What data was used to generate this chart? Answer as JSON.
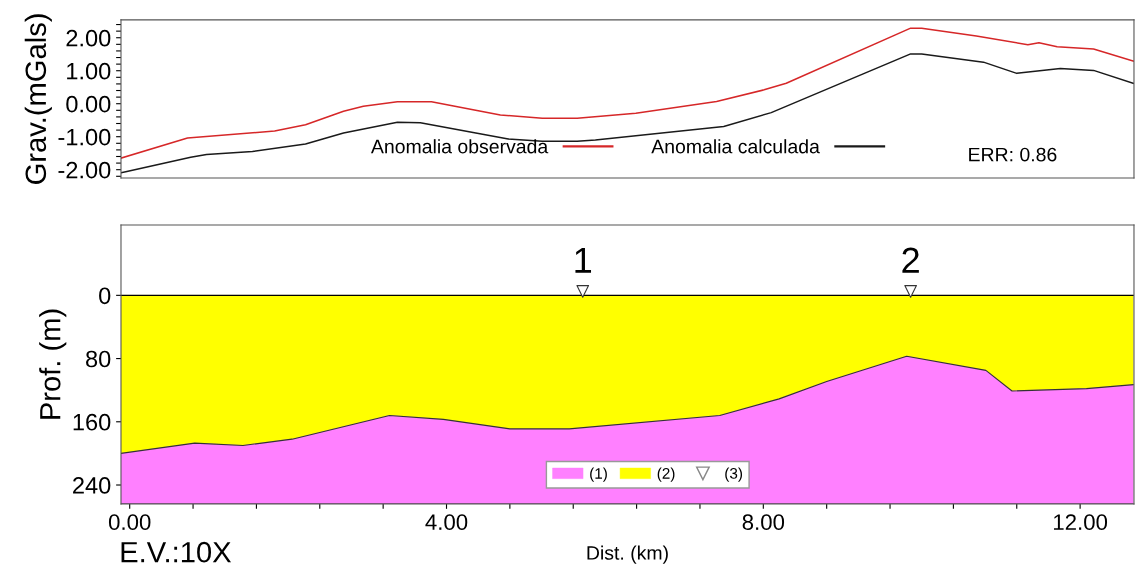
{
  "chart_data": [
    {
      "type": "line",
      "ylabel": "Grav.(mGals)",
      "xlim": [
        -0.11,
        12.68
      ],
      "ylim": [
        -2.25,
        2.54
      ],
      "tick_labels": "y",
      "grid": false,
      "legend": "bottom",
      "line_style": "solid",
      "marker": "none",
      "yticks": [
        {
          "value": -2.2,
          "label": null
        },
        {
          "value": -2,
          "label": "-2.00"
        },
        {
          "value": -1.8,
          "label": null
        },
        {
          "value": -1.6,
          "label": null
        },
        {
          "value": -1.4,
          "label": null
        },
        {
          "value": -1.2,
          "label": null
        },
        {
          "value": -1,
          "label": "-1.00"
        },
        {
          "value": -0.8,
          "label": null
        },
        {
          "value": -0.6,
          "label": null
        },
        {
          "value": -0.4,
          "label": null
        },
        {
          "value": -0.2,
          "label": null
        },
        {
          "value": 0,
          "label": "0.00"
        },
        {
          "value": 0.2,
          "label": null
        },
        {
          "value": 0.4,
          "label": null
        },
        {
          "value": 0.6,
          "label": null
        },
        {
          "value": 0.8,
          "label": null
        },
        {
          "value": 1,
          "label": "1.00"
        },
        {
          "value": 1.2,
          "label": null
        },
        {
          "value": 1.4,
          "label": null
        },
        {
          "value": 1.6,
          "label": null
        },
        {
          "value": 1.8,
          "label": null
        },
        {
          "value": 2,
          "label": "2.00"
        },
        {
          "value": 2.2,
          "label": null
        },
        {
          "value": 2.4,
          "label": null
        }
      ],
      "annotations": [
        "ERR: 0.86"
      ],
      "series": [
        {
          "name": "Anomalia observada",
          "color": "#d62728",
          "x": [
            -0.11,
            0.73,
            1.83,
            2.22,
            2.7,
            2.95,
            3.38,
            3.81,
            4.68,
            5.21,
            5.65,
            6.39,
            7.41,
            8.01,
            8.29,
            9.86,
            10.0,
            10.69,
            11.34,
            11.48,
            11.71,
            12.17,
            12.67
          ],
          "values": [
            -1.65,
            -1.04,
            -0.83,
            -0.64,
            -0.23,
            -0.08,
            0.06,
            0.06,
            -0.34,
            -0.44,
            -0.44,
            -0.29,
            0.07,
            0.42,
            0.62,
            2.29,
            2.29,
            2.05,
            1.79,
            1.85,
            1.73,
            1.66,
            1.29
          ]
        },
        {
          "name": "Anomalia calculada",
          "color": "#1a1a1a",
          "x": [
            -0.11,
            -0.05,
            0.77,
            0.97,
            1.55,
            2.22,
            2.7,
            3.38,
            3.67,
            4.78,
            5.21,
            5.65,
            5.88,
            7.5,
            8.1,
            9.86,
            10.0,
            10.78,
            11.2,
            11.75,
            12.17,
            12.67
          ],
          "values": [
            -2.09,
            -2.06,
            -1.62,
            -1.54,
            -1.45,
            -1.22,
            -0.89,
            -0.56,
            -0.58,
            -1.07,
            -1.14,
            -1.14,
            -1.1,
            -0.69,
            -0.27,
            1.51,
            1.51,
            1.26,
            0.92,
            1.07,
            1.01,
            0.62
          ]
        }
      ]
    },
    {
      "type": "area",
      "stacked": true,
      "xlabel": "Dist. (km)",
      "ylabel": "Prof. (m)",
      "xlim": [
        -0.11,
        12.68
      ],
      "ylim": [
        264,
        -89
      ],
      "grid": false,
      "legend": "bottom",
      "xticks": [
        {
          "value": 0,
          "label": "0.00"
        },
        {
          "value": 0.8,
          "label": null
        },
        {
          "value": 1.6,
          "label": null
        },
        {
          "value": 2.4,
          "label": null
        },
        {
          "value": 3.2,
          "label": null
        },
        {
          "value": 4,
          "label": "4.00"
        },
        {
          "value": 4.8,
          "label": null
        },
        {
          "value": 5.6,
          "label": null
        },
        {
          "value": 6.4,
          "label": null
        },
        {
          "value": 7.2,
          "label": null
        },
        {
          "value": 8,
          "label": "8.00"
        },
        {
          "value": 8.8,
          "label": null
        },
        {
          "value": 9.6,
          "label": null
        },
        {
          "value": 10.4,
          "label": null
        },
        {
          "value": 11.2,
          "label": null
        },
        {
          "value": 12,
          "label": "12.00"
        }
      ],
      "yticks": [
        0,
        80,
        160,
        240
      ],
      "annotations": [
        "E.V.:10X",
        {
          "text": "1",
          "x": 5.72,
          "y": -5
        },
        {
          "text": "2",
          "x": 9.86,
          "y": -5
        }
      ],
      "x": [
        -0.11,
        0.82,
        1.43,
        2.05,
        3.28,
        3.96,
        4.8,
        5.55,
        7.45,
        8.2,
        8.8,
        9.81,
        10.81,
        11.14,
        12.08,
        12.67
      ],
      "series": [
        {
          "name": "(2)",
          "color": "#ffff00",
          "values": [
            200,
            187,
            190,
            182,
            152,
            157,
            169,
            169,
            152,
            131,
            109,
            77,
            95,
            121,
            118,
            113
          ]
        },
        {
          "name": "(1)",
          "color": "#ff80ff",
          "values": [
            64,
            77,
            74,
            82,
            112,
            107,
            95,
            95,
            112,
            133,
            155,
            187,
            169,
            143,
            146,
            151
          ]
        },
        {
          "name": "(3)",
          "type": "scatter",
          "marker": "triangle",
          "color": "#333333",
          "x": [
            5.72,
            9.86
          ],
          "values": [
            -5,
            -5
          ]
        }
      ]
    }
  ]
}
